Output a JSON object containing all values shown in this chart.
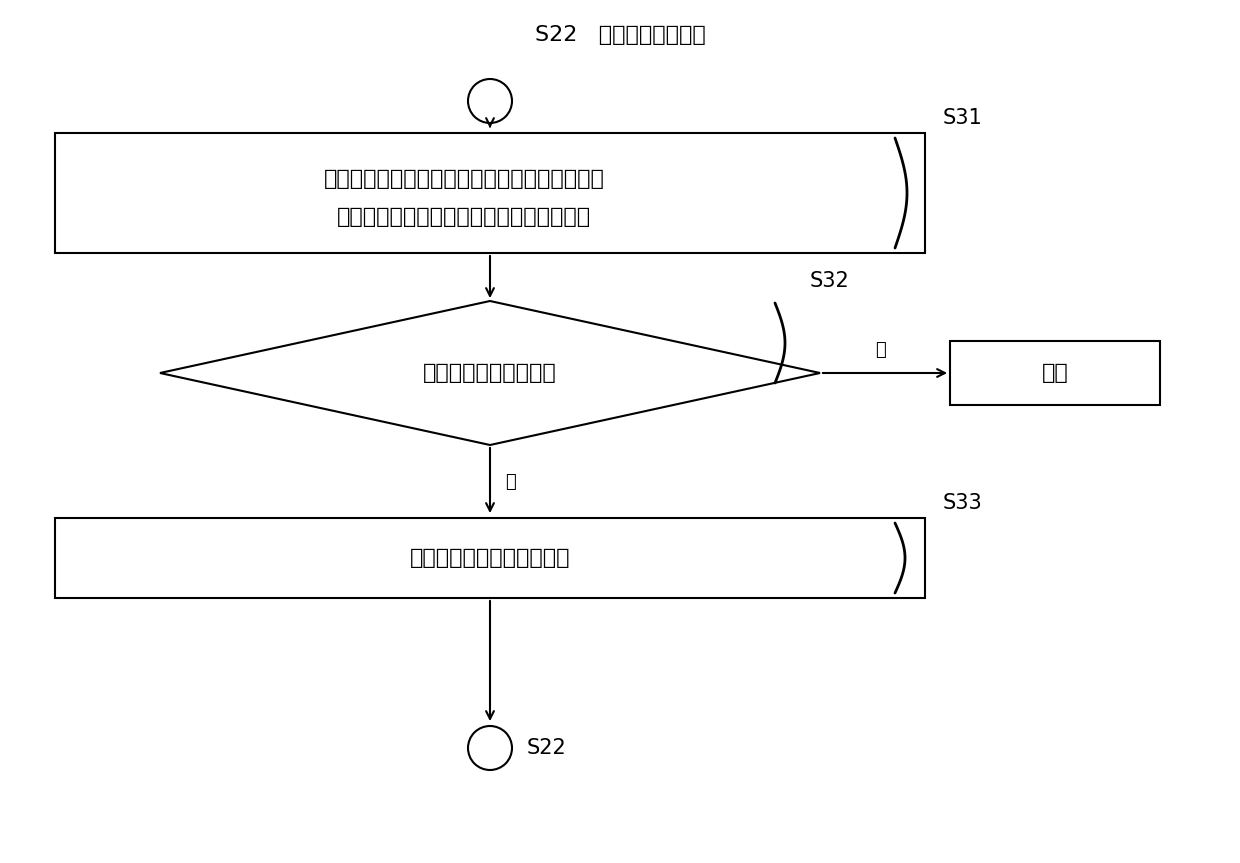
{
  "bg_color": "#ffffff",
  "line_color": "#000000",
  "text_color": "#000000",
  "font_size_main": 16,
  "font_size_label": 13,
  "font_size_step": 15,
  "title_s22_top": "S22   （当匹配成功时）",
  "box1_text_line1": "从待处理集合中删除匹配成功的集合中的元素，",
  "box1_text_line2": "并将待处理集合更新为已删除元素后的集合",
  "box1_label": "S31",
  "diamond_text": "待处理集合是否为空？",
  "diamond_label": "S32",
  "yes_text": "是",
  "no_text": "否",
  "end_text": "结束",
  "box2_text": "选择待处理集合的一个子集",
  "box2_label": "S33",
  "bottom_s22": "S22",
  "lw": 1.5,
  "circle_r": 22,
  "arrow_style": "->",
  "curly_char": "∫"
}
